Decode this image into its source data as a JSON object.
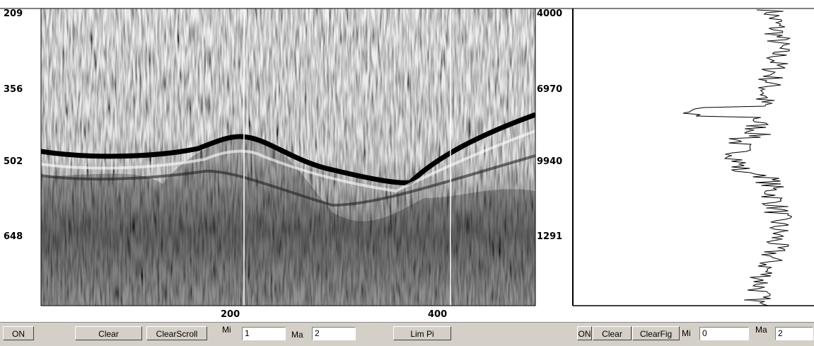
{
  "left_axis": {
    "labels": [
      "209",
      "356",
      "502",
      "648"
    ]
  },
  "right_axis": {
    "labels": [
      "4000",
      "6970",
      "9940",
      "1291"
    ]
  },
  "bottom_axis": {
    "labels": [
      "200",
      "400"
    ]
  },
  "controls": {
    "left": {
      "on": "ON",
      "clear": "Clear",
      "clear_scroll": "ClearScroll",
      "min_label": "Mi",
      "min_value": "1",
      "max_label": "Ma",
      "max_value": "2",
      "lim": "Lim Pi"
    },
    "right": {
      "on": "ON",
      "clear": "Clear",
      "clear_fig": "ClearFig",
      "min_label": "Mi",
      "min_value": "0",
      "max_label": "Ma",
      "max_value": "2"
    }
  }
}
